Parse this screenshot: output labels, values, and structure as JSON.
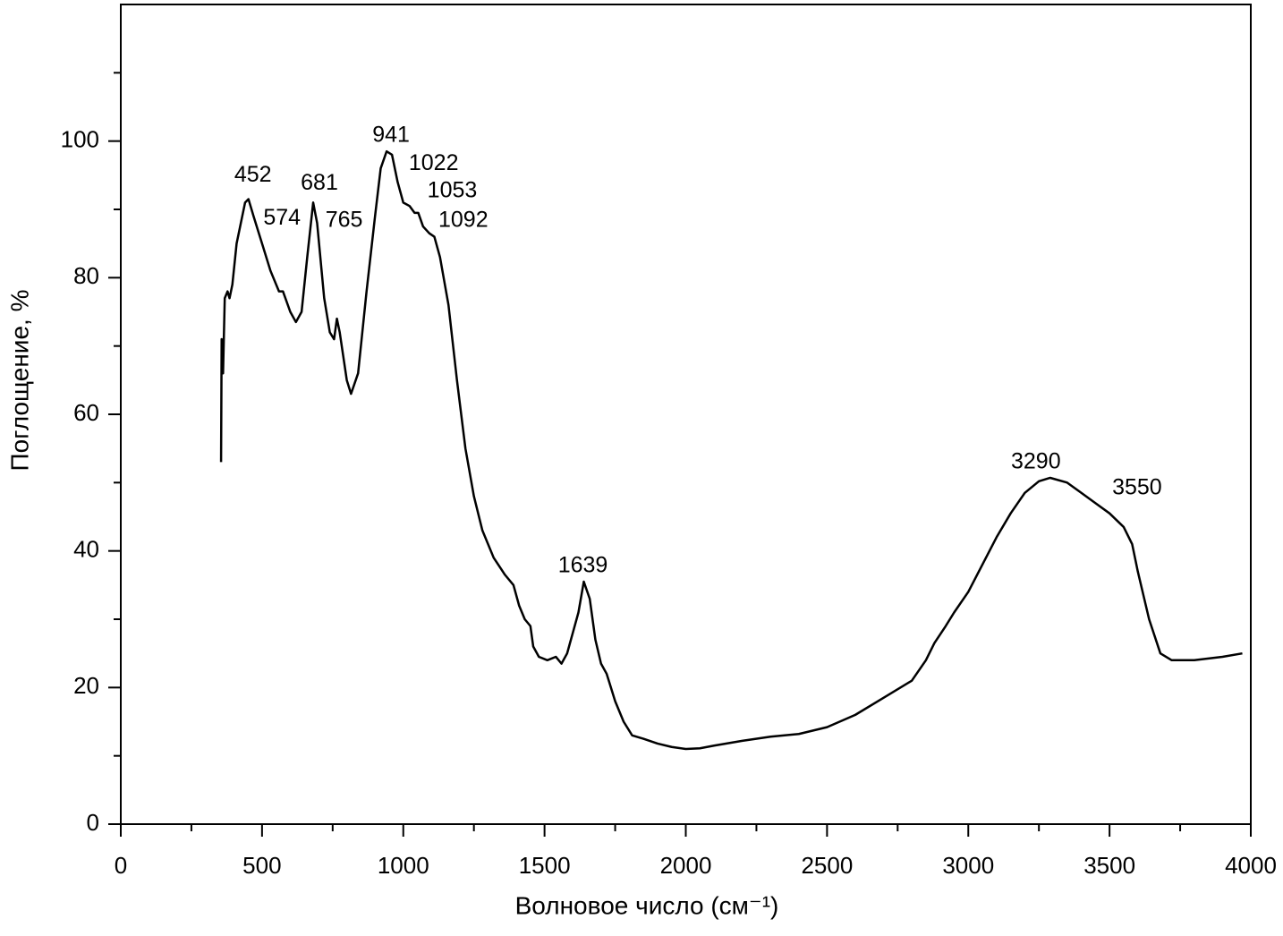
{
  "chart_data": {
    "type": "line",
    "xlabel": "Волновое число (см⁻¹)",
    "ylabel": "Поглощение, %",
    "color": "#000000",
    "xlim": [
      0,
      4000
    ],
    "xticks": [
      0,
      500,
      1000,
      1500,
      2000,
      2500,
      3000,
      3500,
      4000
    ],
    "xminorticks": [
      250,
      750,
      1250,
      1750,
      2250,
      2750,
      3250,
      3750
    ],
    "ylim": [
      0,
      120
    ],
    "yticks": [
      0,
      20,
      40,
      60,
      80,
      100
    ],
    "yminorticks": [
      10,
      30,
      50,
      70,
      90,
      110
    ],
    "grid": false,
    "x": [
      355,
      357,
      362,
      368,
      378,
      385,
      395,
      410,
      425,
      440,
      452,
      470,
      500,
      530,
      560,
      574,
      600,
      620,
      640,
      660,
      681,
      695,
      720,
      740,
      755,
      765,
      775,
      800,
      815,
      840,
      870,
      900,
      920,
      941,
      960,
      980,
      1000,
      1022,
      1040,
      1053,
      1070,
      1092,
      1110,
      1130,
      1160,
      1190,
      1220,
      1250,
      1280,
      1320,
      1360,
      1390,
      1410,
      1430,
      1450,
      1460,
      1480,
      1510,
      1540,
      1560,
      1580,
      1600,
      1620,
      1639,
      1660,
      1680,
      1700,
      1720,
      1750,
      1780,
      1810,
      1850,
      1900,
      1950,
      2000,
      2050,
      2100,
      2200,
      2300,
      2400,
      2500,
      2600,
      2700,
      2800,
      2850,
      2880,
      2920,
      2950,
      3000,
      3050,
      3100,
      3150,
      3200,
      3250,
      3290,
      3350,
      3400,
      3450,
      3500,
      3550,
      3580,
      3600,
      3640,
      3680,
      3720,
      3800,
      3900,
      3970
    ],
    "values": [
      53,
      71,
      66,
      77,
      78,
      77,
      79,
      85,
      88,
      91,
      91.5,
      89,
      85,
      81,
      78,
      78,
      75,
      73.5,
      75,
      83,
      91,
      88,
      77,
      72,
      71,
      74,
      72,
      65,
      63,
      66,
      78,
      89,
      96,
      98.5,
      98,
      94,
      91,
      90.5,
      89.5,
      89.5,
      87.5,
      86.5,
      86,
      83,
      76,
      65,
      55,
      48,
      43,
      39,
      36.5,
      35,
      32,
      30,
      29,
      26,
      24.5,
      24,
      24.5,
      23.5,
      25,
      28,
      31,
      35.5,
      33,
      27,
      23.5,
      22,
      18,
      15,
      13,
      12.5,
      11.8,
      11.3,
      11,
      11.1,
      11.5,
      12.2,
      12.8,
      13.2,
      14.2,
      16,
      18.5,
      21,
      24,
      26.5,
      29,
      31,
      34,
      38,
      42,
      45.5,
      48.5,
      50.2,
      50.7,
      50,
      48.5,
      47,
      45.5,
      43.5,
      41,
      37,
      30,
      25,
      24,
      24,
      24.5,
      25
    ],
    "annotations": [
      {
        "x": 452,
        "y": 91.5
      },
      {
        "x": 574,
        "y": 78
      },
      {
        "x": 681,
        "y": 91
      },
      {
        "x": 765,
        "y": 74
      },
      {
        "x": 941,
        "y": 98.5
      },
      {
        "x": 1022,
        "y": 90.5
      },
      {
        "x": 1053,
        "y": 89.5
      },
      {
        "x": 1092,
        "y": 86.5
      },
      {
        "x": 1639,
        "y": 35.5
      },
      {
        "x": 3290,
        "y": 50.7
      },
      {
        "x": 3550,
        "y": 43.5
      }
    ]
  }
}
